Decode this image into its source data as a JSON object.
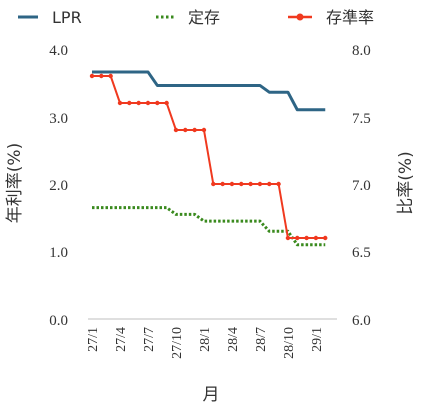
{
  "chart_data": {
    "type": "line",
    "xlabel": "月",
    "ylabel_left": "年利率(%)",
    "ylabel_right": "比率(%)",
    "ylim_left": [
      0,
      4
    ],
    "ylim_right": [
      6,
      8
    ],
    "yticks_left": [
      "0.0",
      "1.0",
      "2.0",
      "3.0",
      "4.0"
    ],
    "yticks_right": [
      "6.0",
      "6.5",
      "7.0",
      "7.5",
      "8.0"
    ],
    "x_tick_labels": [
      "27/1",
      "27/4",
      "27/7",
      "27/10",
      "28/1",
      "28/4",
      "28/7",
      "28/10",
      "29/1"
    ],
    "x_months": [
      "27/1",
      "27/2",
      "27/3",
      "27/4",
      "27/5",
      "27/6",
      "27/7",
      "27/8",
      "27/9",
      "27/10",
      "27/11",
      "27/12",
      "28/1",
      "28/2",
      "28/3",
      "28/4",
      "28/5",
      "28/6",
      "28/7",
      "28/8",
      "28/9",
      "28/10",
      "28/11",
      "28/12",
      "29/1",
      "29/2"
    ],
    "legend_position": "top",
    "grid": false,
    "series": [
      {
        "name": "LPR",
        "axis": "right",
        "color": "#2e6585",
        "style": "solid",
        "values": [
          7.83,
          7.83,
          7.83,
          7.83,
          7.83,
          7.83,
          7.83,
          7.73,
          7.73,
          7.73,
          7.73,
          7.73,
          7.73,
          7.73,
          7.73,
          7.73,
          7.73,
          7.73,
          7.73,
          7.68,
          7.68,
          7.68,
          7.55,
          7.55,
          7.55,
          7.55
        ]
      },
      {
        "name": "定存",
        "axis": "left",
        "color": "#3a8a1e",
        "style": "dotted",
        "values": [
          1.65,
          1.65,
          1.65,
          1.65,
          1.65,
          1.65,
          1.65,
          1.65,
          1.65,
          1.55,
          1.55,
          1.55,
          1.45,
          1.45,
          1.45,
          1.45,
          1.45,
          1.45,
          1.45,
          1.3,
          1.3,
          1.3,
          1.1,
          1.1,
          1.1,
          1.1
        ]
      },
      {
        "name": "存準率",
        "axis": "left",
        "color": "#f0391f",
        "style": "solid-markers",
        "values": [
          3.6,
          3.6,
          3.6,
          3.2,
          3.2,
          3.2,
          3.2,
          3.2,
          3.2,
          2.8,
          2.8,
          2.8,
          2.8,
          2.0,
          2.0,
          2.0,
          2.0,
          2.0,
          2.0,
          2.0,
          2.0,
          1.2,
          1.2,
          1.2,
          1.2,
          1.2
        ]
      }
    ]
  }
}
